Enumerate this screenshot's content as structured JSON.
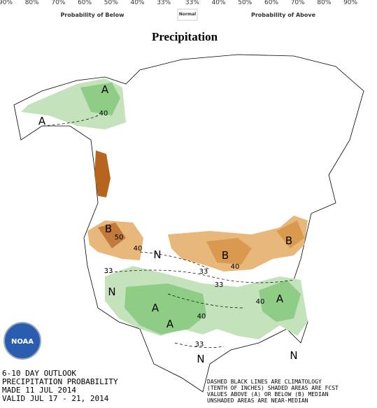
{
  "legend": {
    "percent_labels": [
      "90%",
      "80%",
      "70%",
      "60%",
      "50%",
      "40%",
      "33%",
      "33%",
      "40%",
      "50%",
      "60%",
      "70%",
      "80%",
      "90%"
    ],
    "below_label": "Probability of Below",
    "normal_label": "Normal",
    "above_label": "Probability of Above"
  },
  "title": "Precipitation",
  "map": {
    "labels": [
      "A",
      "40",
      "A",
      "B",
      "50",
      "40",
      "N",
      "33",
      "B",
      "40",
      "33",
      "B",
      "33",
      "N",
      "A",
      "A",
      "40",
      "A",
      "40",
      "33",
      "N",
      "N"
    ]
  },
  "logo": "NOAA",
  "footer_left": [
    "6-10 DAY OUTLOOK",
    "PRECIPITATION PROBABILITY",
    "MADE  11 JUL 2014",
    "VALID  JUL 17 - 21, 2014"
  ],
  "footer_right": [
    "DASHED BLACK LINES ARE CLIMATOLOGY",
    "(TENTH OF INCHES) SHADED AREAS ARE FCST",
    "VALUES ABOVE (A) OR BELOW (B) MEDIAN",
    "UNSHADED AREAS ARE NEAR-MEDIAN"
  ]
}
